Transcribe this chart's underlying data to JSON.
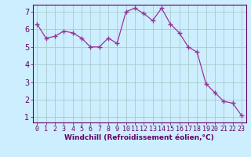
{
  "x": [
    0,
    1,
    2,
    3,
    4,
    5,
    6,
    7,
    8,
    9,
    10,
    11,
    12,
    13,
    14,
    15,
    16,
    17,
    18,
    19,
    20,
    21,
    22,
    23
  ],
  "y": [
    6.3,
    5.5,
    5.6,
    5.9,
    5.8,
    5.5,
    5.0,
    5.0,
    5.5,
    5.2,
    7.0,
    7.2,
    6.9,
    6.5,
    7.2,
    6.3,
    5.8,
    5.0,
    4.7,
    2.9,
    2.4,
    1.9,
    1.8,
    1.1
  ],
  "line_color": "#993399",
  "marker": "+",
  "marker_size": 4,
  "marker_color": "#993399",
  "bg_color": "#cceeff",
  "grid_color": "#aacccc",
  "xlabel": "Windchill (Refroidissement éolien,°C)",
  "xlim": [
    -0.5,
    23.5
  ],
  "ylim": [
    0.7,
    7.4
  ],
  "xticks": [
    0,
    1,
    2,
    3,
    4,
    5,
    6,
    7,
    8,
    9,
    10,
    11,
    12,
    13,
    14,
    15,
    16,
    17,
    18,
    19,
    20,
    21,
    22,
    23
  ],
  "yticks": [
    1,
    2,
    3,
    4,
    5,
    6,
    7
  ],
  "xlabel_color": "#660066",
  "tick_color": "#660066",
  "tick_fontsize": 6,
  "xlabel_fontsize": 6.5,
  "xlabel_fontweight": "bold"
}
